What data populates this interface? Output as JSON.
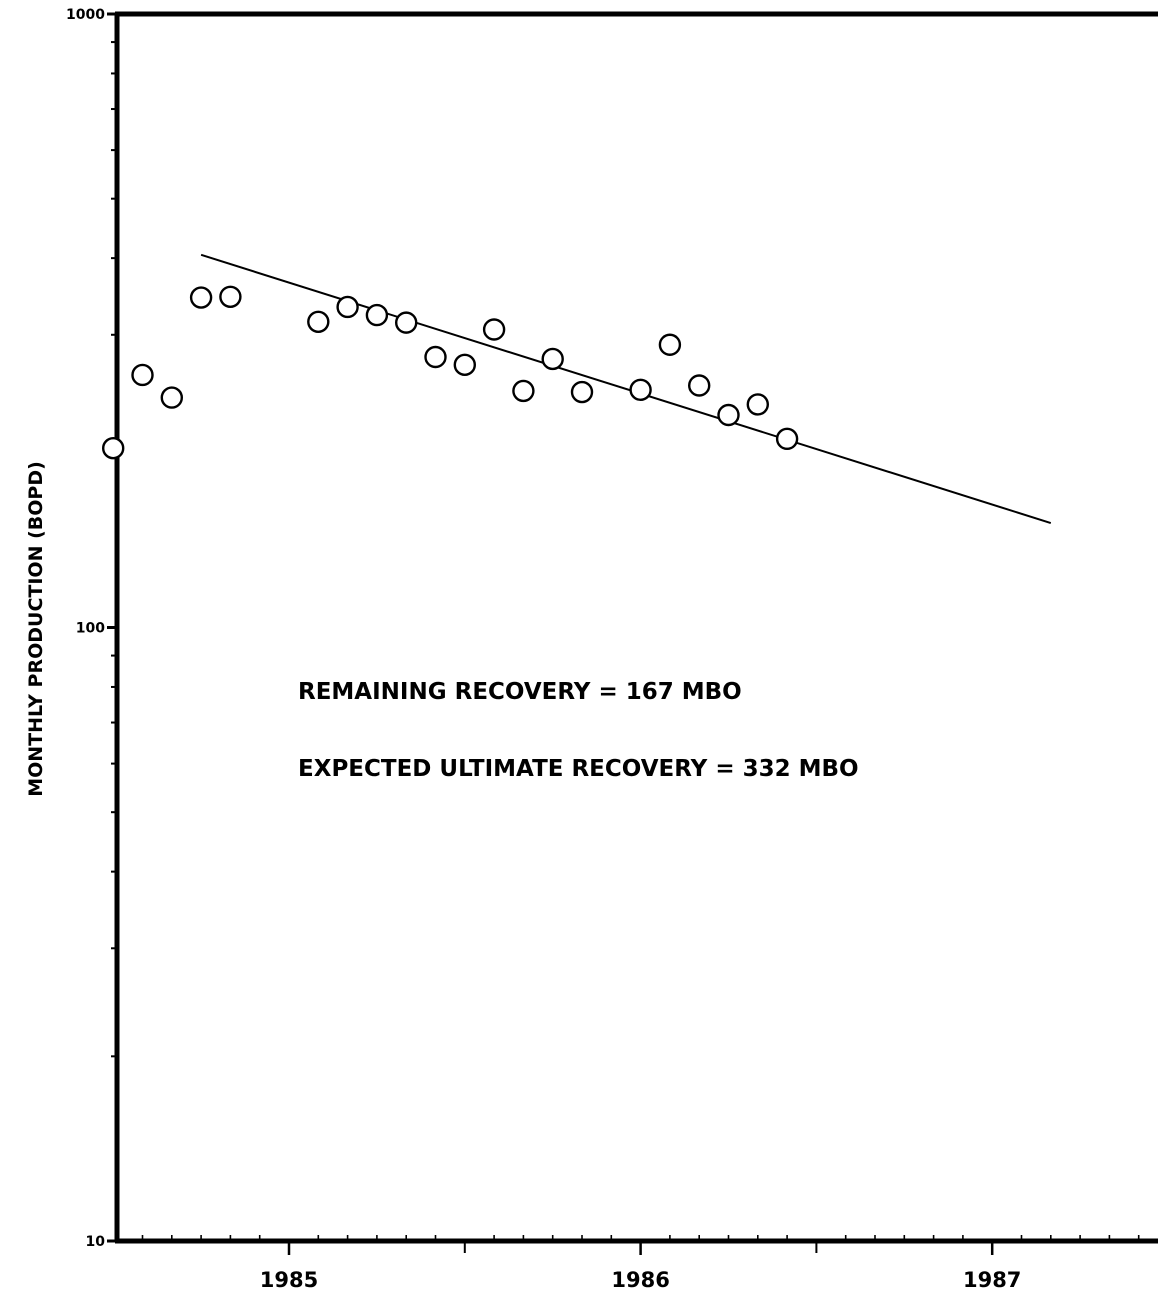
{
  "chart_data": {
    "type": "scatter",
    "title": "",
    "xlabel": "",
    "ylabel": "MONTHLY PRODUCTION (BOPD)",
    "y_scale": "log",
    "ylim": [
      10,
      1000
    ],
    "xlim": [
      "1984-06",
      "1987-08"
    ],
    "y_ticks": [
      "10",
      "100",
      "1000"
    ],
    "x_ticks": [
      {
        "label": "1985",
        "x": "1985-01"
      },
      {
        "label": "1986",
        "x": "1986-01"
      },
      {
        "label": "1987",
        "x": "1987-01"
      }
    ],
    "grid": false,
    "legend": "none",
    "series": [
      {
        "kind": "points",
        "marker": "open-circle",
        "points": [
          {
            "x": "1984-07",
            "y": 196
          },
          {
            "x": "1984-08",
            "y": 258
          },
          {
            "x": "1984-09",
            "y": 237
          },
          {
            "x": "1984-10",
            "y": 345
          },
          {
            "x": "1984-11",
            "y": 346
          },
          {
            "x": "1985-02",
            "y": 315
          },
          {
            "x": "1985-03",
            "y": 333
          },
          {
            "x": "1985-04",
            "y": 323
          },
          {
            "x": "1985-05",
            "y": 314
          },
          {
            "x": "1985-06",
            "y": 276
          },
          {
            "x": "1985-07",
            "y": 268
          },
          {
            "x": "1985-08",
            "y": 306
          },
          {
            "x": "1985-09",
            "y": 243
          },
          {
            "x": "1985-10",
            "y": 274
          },
          {
            "x": "1985-11",
            "y": 242
          },
          {
            "x": "1986-01",
            "y": 244
          },
          {
            "x": "1986-02",
            "y": 289
          },
          {
            "x": "1986-03",
            "y": 248
          },
          {
            "x": "1986-04",
            "y": 222
          },
          {
            "x": "1986-05",
            "y": 231
          },
          {
            "x": "1986-06",
            "y": 203
          }
        ]
      },
      {
        "kind": "line",
        "points": [
          {
            "x": "1984-10",
            "y": 405
          },
          {
            "x": "1987-03",
            "y": 148
          }
        ]
      }
    ],
    "annotations": [
      "REMAINING RECOVERY = 167 MBO",
      "EXPECTED ULTIMATE RECOVERY = 332 MBO"
    ]
  }
}
